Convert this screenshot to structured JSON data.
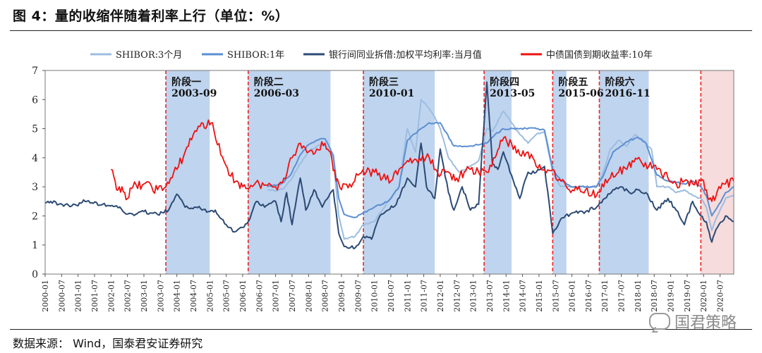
{
  "page": {
    "title": "图 4：量的收缩伴随着利率上行（单位：%）",
    "source": "数据来源：   Wind，国泰君安证券研究",
    "watermark": "国君策略"
  },
  "colors": {
    "shibor3m": "#9dbde0",
    "shibor1y": "#5b8fd3",
    "interbank": "#2c4a74",
    "bond10y": "#ee1111",
    "band": "#b4cdeb",
    "band_last": "#f6dcdc",
    "divider": "#ee2222"
  },
  "chart_data": {
    "type": "line",
    "xlim": [
      "2000-01",
      "2020-12"
    ],
    "ylim": [
      0,
      7
    ],
    "yticks": [
      0,
      1,
      2,
      3,
      4,
      5,
      6,
      7
    ],
    "xticks": [
      "2000-01",
      "2000-07",
      "2001-01",
      "2001-07",
      "2002-01",
      "2002-07",
      "2003-01",
      "2003-07",
      "2004-01",
      "2004-07",
      "2005-01",
      "2005-07",
      "2006-01",
      "2006-07",
      "2007-01",
      "2007-07",
      "2008-01",
      "2008-07",
      "2009-01",
      "2009-07",
      "2010-01",
      "2010-07",
      "2011-01",
      "2011-07",
      "2012-01",
      "2012-07",
      "2013-01",
      "2013-07",
      "2014-01",
      "2014-07",
      "2015-01",
      "2015-07",
      "2016-01",
      "2016-07",
      "2017-01",
      "2017-07",
      "2018-01",
      "2018-07",
      "2019-01",
      "2019-07",
      "2020-01",
      "2020-07"
    ],
    "legend_position": "top",
    "phases": [
      {
        "name": "阶段一",
        "date": "2003-09",
        "start": "2003-09",
        "end": "2005-01"
      },
      {
        "name": "阶段二",
        "date": "2006-03",
        "start": "2006-03",
        "end": "2008-09"
      },
      {
        "name": "阶段三",
        "date": "2010-01",
        "start": "2009-09",
        "end": "2011-11"
      },
      {
        "name": "阶段四",
        "date": "2013-05",
        "start": "2013-05",
        "end": "2014-03"
      },
      {
        "name": "阶段五",
        "date": "2015-06",
        "start": "2015-06",
        "end": "2015-11"
      },
      {
        "name": "阶段六",
        "date": "2016-11",
        "start": "2016-11",
        "end": "2018-05"
      }
    ],
    "last_phase": {
      "start": "2019-12",
      "end": "2020-12"
    },
    "series": [
      {
        "name": "SHIBOR:3个月",
        "color_key": "shibor3m",
        "points": [
          [
            "2006-10",
            2.9
          ],
          [
            "2007-01",
            2.85
          ],
          [
            "2007-04",
            2.95
          ],
          [
            "2007-07",
            3.3
          ],
          [
            "2007-10",
            3.8
          ],
          [
            "2008-01",
            4.2
          ],
          [
            "2008-04",
            4.4
          ],
          [
            "2008-07",
            4.45
          ],
          [
            "2008-10",
            4.0
          ],
          [
            "2008-12",
            2.0
          ],
          [
            "2009-02",
            1.2
          ],
          [
            "2009-06",
            1.3
          ],
          [
            "2009-09",
            1.7
          ],
          [
            "2010-01",
            1.8
          ],
          [
            "2010-06",
            2.5
          ],
          [
            "2010-10",
            3.0
          ],
          [
            "2011-01",
            5.0
          ],
          [
            "2011-04",
            4.2
          ],
          [
            "2011-06",
            6.0
          ],
          [
            "2011-08",
            5.8
          ],
          [
            "2011-11",
            5.4
          ],
          [
            "2012-01",
            5.0
          ],
          [
            "2012-04",
            4.0
          ],
          [
            "2012-08",
            3.5
          ],
          [
            "2012-12",
            3.7
          ],
          [
            "2013-03",
            3.9
          ],
          [
            "2013-06",
            5.0
          ],
          [
            "2013-08",
            4.9
          ],
          [
            "2013-12",
            5.6
          ],
          [
            "2014-03",
            5.2
          ],
          [
            "2014-06",
            4.8
          ],
          [
            "2014-09",
            4.5
          ],
          [
            "2014-12",
            4.8
          ],
          [
            "2015-03",
            4.9
          ],
          [
            "2015-06",
            3.5
          ],
          [
            "2015-09",
            3.0
          ],
          [
            "2015-12",
            3.0
          ],
          [
            "2016-06",
            3.0
          ],
          [
            "2016-10",
            3.0
          ],
          [
            "2016-12",
            3.4
          ],
          [
            "2017-03",
            4.3
          ],
          [
            "2017-06",
            4.6
          ],
          [
            "2017-09",
            4.4
          ],
          [
            "2017-12",
            4.8
          ],
          [
            "2018-03",
            4.6
          ],
          [
            "2018-06",
            4.3
          ],
          [
            "2018-08",
            3.0
          ],
          [
            "2018-12",
            3.0
          ],
          [
            "2019-03",
            2.8
          ],
          [
            "2019-06",
            2.9
          ],
          [
            "2019-09",
            2.7
          ],
          [
            "2019-12",
            2.6
          ],
          [
            "2020-02",
            2.3
          ],
          [
            "2020-04",
            1.5
          ],
          [
            "2020-06",
            2.0
          ],
          [
            "2020-09",
            2.6
          ],
          [
            "2020-12",
            2.7
          ]
        ]
      },
      {
        "name": "SHIBOR:1年",
        "color_key": "shibor1y",
        "points": [
          [
            "2006-10",
            3.0
          ],
          [
            "2007-01",
            3.05
          ],
          [
            "2007-04",
            3.15
          ],
          [
            "2007-07",
            3.5
          ],
          [
            "2007-10",
            4.1
          ],
          [
            "2008-01",
            4.45
          ],
          [
            "2008-04",
            4.6
          ],
          [
            "2008-07",
            4.65
          ],
          [
            "2008-10",
            4.1
          ],
          [
            "2008-12",
            2.6
          ],
          [
            "2009-02",
            2.05
          ],
          [
            "2009-06",
            1.95
          ],
          [
            "2009-09",
            2.1
          ],
          [
            "2010-01",
            2.3
          ],
          [
            "2010-06",
            2.5
          ],
          [
            "2010-10",
            3.0
          ],
          [
            "2011-01",
            4.6
          ],
          [
            "2011-06",
            5.0
          ],
          [
            "2011-09",
            5.2
          ],
          [
            "2012-01",
            5.2
          ],
          [
            "2012-06",
            4.4
          ],
          [
            "2012-12",
            4.4
          ],
          [
            "2013-06",
            4.5
          ],
          [
            "2013-09",
            4.8
          ],
          [
            "2013-12",
            5.0
          ],
          [
            "2014-06",
            5.0
          ],
          [
            "2014-12",
            5.0
          ],
          [
            "2015-03",
            4.95
          ],
          [
            "2015-06",
            3.6
          ],
          [
            "2015-09",
            3.2
          ],
          [
            "2016-01",
            3.0
          ],
          [
            "2016-10",
            3.0
          ],
          [
            "2017-01",
            3.5
          ],
          [
            "2017-04",
            4.2
          ],
          [
            "2017-07",
            4.4
          ],
          [
            "2017-10",
            4.6
          ],
          [
            "2018-01",
            4.7
          ],
          [
            "2018-04",
            4.5
          ],
          [
            "2018-08",
            3.4
          ],
          [
            "2018-12",
            3.2
          ],
          [
            "2019-06",
            3.1
          ],
          [
            "2019-09",
            3.2
          ],
          [
            "2019-12",
            3.0
          ],
          [
            "2020-02",
            2.7
          ],
          [
            "2020-04",
            2.0
          ],
          [
            "2020-06",
            2.3
          ],
          [
            "2020-09",
            2.8
          ],
          [
            "2020-12",
            3.0
          ]
        ]
      },
      {
        "name": "银行间同业拆借:加权平均利率:当月值",
        "color_key": "interbank",
        "points": [
          [
            "2000-01",
            2.45
          ],
          [
            "2000-03",
            2.5
          ],
          [
            "2000-06",
            2.4
          ],
          [
            "2001-01",
            2.35
          ],
          [
            "2001-03",
            2.55
          ],
          [
            "2001-06",
            2.45
          ],
          [
            "2001-10",
            2.4
          ],
          [
            "2002-03",
            2.35
          ],
          [
            "2002-06",
            2.1
          ],
          [
            "2002-10",
            2.05
          ],
          [
            "2003-01",
            2.15
          ],
          [
            "2003-06",
            2.05
          ],
          [
            "2003-10",
            2.2
          ],
          [
            "2004-01",
            2.75
          ],
          [
            "2004-04",
            2.3
          ],
          [
            "2004-08",
            2.3
          ],
          [
            "2005-01",
            2.15
          ],
          [
            "2005-03",
            2.2
          ],
          [
            "2005-07",
            1.7
          ],
          [
            "2005-10",
            1.45
          ],
          [
            "2006-01",
            1.6
          ],
          [
            "2006-03",
            1.8
          ],
          [
            "2006-06",
            2.5
          ],
          [
            "2006-09",
            2.3
          ],
          [
            "2007-01",
            2.5
          ],
          [
            "2007-03",
            1.8
          ],
          [
            "2007-05",
            2.8
          ],
          [
            "2007-07",
            1.7
          ],
          [
            "2007-10",
            3.3
          ],
          [
            "2007-12",
            2.2
          ],
          [
            "2008-03",
            2.9
          ],
          [
            "2008-06",
            2.3
          ],
          [
            "2008-10",
            2.9
          ],
          [
            "2008-12",
            1.4
          ],
          [
            "2009-02",
            0.95
          ],
          [
            "2009-06",
            0.9
          ],
          [
            "2009-09",
            1.3
          ],
          [
            "2009-12",
            1.2
          ],
          [
            "2010-03",
            2.0
          ],
          [
            "2010-06",
            2.2
          ],
          [
            "2010-09",
            2.4
          ],
          [
            "2011-01",
            3.3
          ],
          [
            "2011-04",
            3.0
          ],
          [
            "2011-06",
            4.5
          ],
          [
            "2011-08",
            3.0
          ],
          [
            "2011-11",
            2.6
          ],
          [
            "2012-01",
            4.3
          ],
          [
            "2012-04",
            2.8
          ],
          [
            "2012-06",
            2.2
          ],
          [
            "2012-09",
            3.0
          ],
          [
            "2012-12",
            2.2
          ],
          [
            "2013-03",
            2.4
          ],
          [
            "2013-06",
            6.6
          ],
          [
            "2013-08",
            3.8
          ],
          [
            "2013-10",
            3.6
          ],
          [
            "2013-12",
            4.2
          ],
          [
            "2014-03",
            3.4
          ],
          [
            "2014-06",
            2.6
          ],
          [
            "2014-09",
            3.5
          ],
          [
            "2014-12",
            3.5
          ],
          [
            "2015-03",
            3.7
          ],
          [
            "2015-06",
            1.4
          ],
          [
            "2015-09",
            1.9
          ],
          [
            "2016-01",
            2.1
          ],
          [
            "2016-06",
            2.15
          ],
          [
            "2016-10",
            2.3
          ],
          [
            "2017-01",
            2.6
          ],
          [
            "2017-04",
            2.9
          ],
          [
            "2017-07",
            3.0
          ],
          [
            "2017-10",
            2.8
          ],
          [
            "2018-01",
            2.9
          ],
          [
            "2018-04",
            2.8
          ],
          [
            "2018-08",
            2.2
          ],
          [
            "2018-12",
            2.6
          ],
          [
            "2019-03",
            2.2
          ],
          [
            "2019-06",
            1.7
          ],
          [
            "2019-09",
            2.5
          ],
          [
            "2019-12",
            2.0
          ],
          [
            "2020-02",
            1.8
          ],
          [
            "2020-04",
            1.1
          ],
          [
            "2020-06",
            1.6
          ],
          [
            "2020-09",
            2.0
          ],
          [
            "2020-12",
            1.8
          ]
        ]
      },
      {
        "name": "中债国债到期收益率:10年",
        "color_key": "bond10y",
        "points": [
          [
            "2002-01",
            3.6
          ],
          [
            "2002-03",
            2.9
          ],
          [
            "2002-05",
            3.0
          ],
          [
            "2002-07",
            2.6
          ],
          [
            "2002-09",
            3.0
          ],
          [
            "2003-01",
            3.1
          ],
          [
            "2003-06",
            2.9
          ],
          [
            "2003-09",
            3.0
          ],
          [
            "2004-01",
            3.6
          ],
          [
            "2004-04",
            4.2
          ],
          [
            "2004-07",
            4.8
          ],
          [
            "2004-10",
            5.2
          ],
          [
            "2004-12",
            5.1
          ],
          [
            "2005-02",
            5.2
          ],
          [
            "2005-05",
            4.1
          ],
          [
            "2005-08",
            3.4
          ],
          [
            "2005-11",
            3.2
          ],
          [
            "2006-01",
            3.0
          ],
          [
            "2006-04",
            3.05
          ],
          [
            "2006-07",
            3.1
          ],
          [
            "2006-10",
            3.05
          ],
          [
            "2007-01",
            3.0
          ],
          [
            "2007-04",
            3.3
          ],
          [
            "2007-07",
            4.0
          ],
          [
            "2007-10",
            4.5
          ],
          [
            "2008-01",
            4.2
          ],
          [
            "2008-04",
            4.3
          ],
          [
            "2008-07",
            4.5
          ],
          [
            "2008-09",
            4.2
          ],
          [
            "2008-11",
            3.2
          ],
          [
            "2009-01",
            2.9
          ],
          [
            "2009-04",
            3.1
          ],
          [
            "2009-07",
            3.4
          ],
          [
            "2009-10",
            3.5
          ],
          [
            "2010-01",
            3.5
          ],
          [
            "2010-04",
            3.3
          ],
          [
            "2010-07",
            3.2
          ],
          [
            "2010-10",
            3.6
          ],
          [
            "2011-01",
            3.9
          ],
          [
            "2011-06",
            3.9
          ],
          [
            "2011-09",
            4.0
          ],
          [
            "2011-12",
            3.5
          ],
          [
            "2012-03",
            3.5
          ],
          [
            "2012-07",
            3.3
          ],
          [
            "2012-12",
            3.6
          ],
          [
            "2013-03",
            3.5
          ],
          [
            "2013-06",
            3.5
          ],
          [
            "2013-09",
            4.0
          ],
          [
            "2013-11",
            4.6
          ],
          [
            "2014-03",
            4.5
          ],
          [
            "2014-06",
            4.1
          ],
          [
            "2014-09",
            4.2
          ],
          [
            "2014-12",
            3.7
          ],
          [
            "2015-03",
            3.6
          ],
          [
            "2015-06",
            3.6
          ],
          [
            "2015-09",
            3.2
          ],
          [
            "2015-12",
            2.9
          ],
          [
            "2016-03",
            2.9
          ],
          [
            "2016-06",
            2.9
          ],
          [
            "2016-10",
            2.7
          ],
          [
            "2016-12",
            3.1
          ],
          [
            "2017-03",
            3.3
          ],
          [
            "2017-06",
            3.5
          ],
          [
            "2017-09",
            3.6
          ],
          [
            "2017-11",
            3.9
          ],
          [
            "2018-02",
            3.9
          ],
          [
            "2018-05",
            3.7
          ],
          [
            "2018-08",
            3.6
          ],
          [
            "2018-12",
            3.3
          ],
          [
            "2019-03",
            3.1
          ],
          [
            "2019-06",
            3.2
          ],
          [
            "2019-09",
            3.1
          ],
          [
            "2019-12",
            3.2
          ],
          [
            "2020-02",
            2.9
          ],
          [
            "2020-04",
            2.5
          ],
          [
            "2020-06",
            2.85
          ],
          [
            "2020-09",
            3.1
          ],
          [
            "2020-12",
            3.2
          ]
        ]
      }
    ]
  }
}
